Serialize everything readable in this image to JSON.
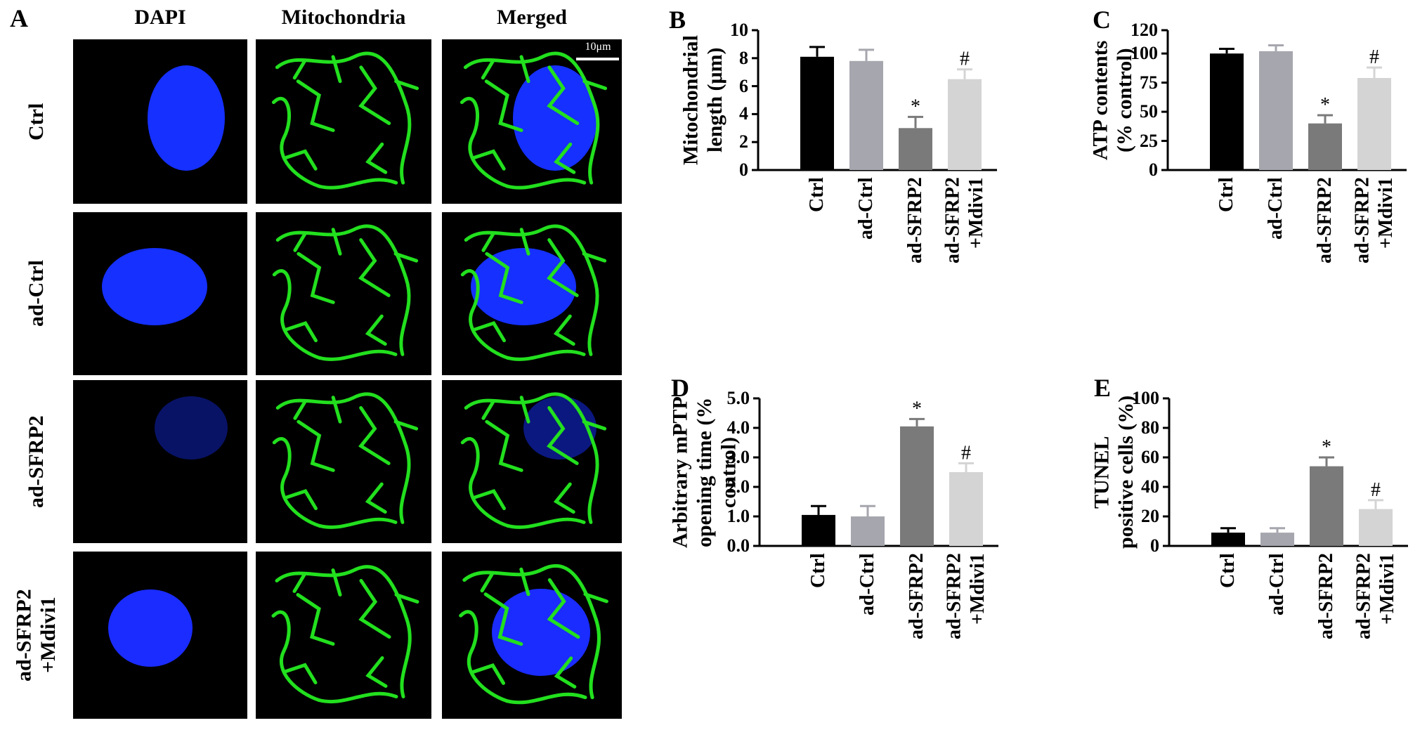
{
  "panel_a": {
    "label": "A",
    "columns": [
      "DAPI",
      "Mitochondria",
      "Merged"
    ],
    "rows": [
      "Ctrl",
      "ad-Ctrl",
      "ad-SFRP2",
      "ad-SFRP2\n+Mdivi1"
    ],
    "scale_bar": "10μm"
  },
  "chart_data": [
    {
      "panel_label": "B",
      "type": "bar",
      "ylabel": [
        "Mitochondrial",
        "length (μm)"
      ],
      "categories": [
        "Ctrl",
        "ad-Ctrl",
        "ad-SFRP2",
        "ad-SFRP2\n+Mdivi1"
      ],
      "values": [
        8.1,
        7.8,
        3.0,
        6.5
      ],
      "errors": [
        0.7,
        0.8,
        0.8,
        0.7
      ],
      "bar_markers": [
        null,
        null,
        "*",
        "#"
      ],
      "colors": [
        "#000000",
        "#a6a6ae",
        "#7a7a7a",
        "#d4d4d4"
      ],
      "ylim": [
        0,
        10
      ],
      "yticks": [
        0,
        2,
        4,
        6,
        8,
        10
      ]
    },
    {
      "panel_label": "C",
      "type": "bar",
      "ylabel": [
        "ATP contents",
        "(% control)"
      ],
      "categories": [
        "Ctrl",
        "ad-Ctrl",
        "ad-SFRP2",
        "ad-SFRP2\n+Mdivi1"
      ],
      "values": [
        100,
        102,
        40,
        79
      ],
      "errors": [
        4,
        5,
        7,
        9
      ],
      "bar_markers": [
        null,
        null,
        "*",
        "#"
      ],
      "colors": [
        "#000000",
        "#a6a6ae",
        "#7a7a7a",
        "#d4d4d4"
      ],
      "ylim": [
        0,
        120
      ],
      "yticks": [
        0,
        25,
        50,
        75,
        100,
        120
      ]
    },
    {
      "panel_label": "D",
      "type": "bar",
      "ylabel": [
        "Arbitrary mPTP",
        "opening time (% control)"
      ],
      "categories": [
        "Ctrl",
        "ad-Ctrl",
        "ad-SFRP2",
        "ad-SFRP2\n+Mdivi1"
      ],
      "values": [
        1.05,
        1.0,
        4.05,
        2.5
      ],
      "errors": [
        0.3,
        0.35,
        0.25,
        0.3
      ],
      "bar_markers": [
        null,
        null,
        "*",
        "#"
      ],
      "colors": [
        "#000000",
        "#a6a6ae",
        "#7a7a7a",
        "#d4d4d4"
      ],
      "ylim": [
        0,
        5
      ],
      "yticks": [
        {
          "value": 0,
          "label": "0.0"
        },
        {
          "value": 1,
          "label": "1.0"
        },
        {
          "value": 2,
          "label": "2.0"
        },
        {
          "value": 3,
          "label": "3.0"
        },
        {
          "value": 4,
          "label": "4.0"
        },
        {
          "value": 5,
          "label": "5.0"
        }
      ]
    },
    {
      "panel_label": "E",
      "type": "bar",
      "ylabel": [
        "TUNEL",
        "positive cells (%)"
      ],
      "categories": [
        "Ctrl",
        "ad-Ctrl",
        "ad-SFRP2",
        "ad-SFRP2\n+Mdivi1"
      ],
      "values": [
        9,
        9,
        54,
        25
      ],
      "errors": [
        3,
        3,
        6,
        6
      ],
      "bar_markers": [
        null,
        null,
        "*",
        "#"
      ],
      "colors": [
        "#000000",
        "#a6a6ae",
        "#7a7a7a",
        "#d4d4d4"
      ],
      "ylim": [
        0,
        100
      ],
      "yticks": [
        0,
        20,
        40,
        60,
        80,
        100
      ]
    }
  ]
}
